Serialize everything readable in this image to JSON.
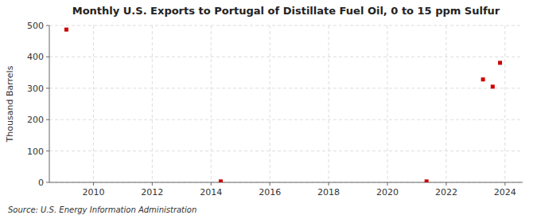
{
  "chart_data": {
    "type": "scatter",
    "title": "Monthly U.S. Exports to Portugal of Distillate Fuel Oil, 0 to 15 ppm Sulfur",
    "y_label": "Thousand Barrels",
    "source": "Source: U.S. Energy Information Administration",
    "x": [
      2009.08,
      2014.33,
      2021.33,
      2023.25,
      2023.58,
      2023.83
    ],
    "values": [
      487,
      3,
      3,
      328,
      305,
      381
    ],
    "color": "#cc0000",
    "marker": "square",
    "xlim": [
      2008.5,
      2024.6
    ],
    "ylim": [
      0,
      500
    ],
    "xticks": [
      2010,
      2012,
      2014,
      2016,
      2018,
      2020,
      2022,
      2024
    ],
    "yticks": [
      0,
      100,
      200,
      300,
      400,
      500
    ],
    "grid": true
  }
}
